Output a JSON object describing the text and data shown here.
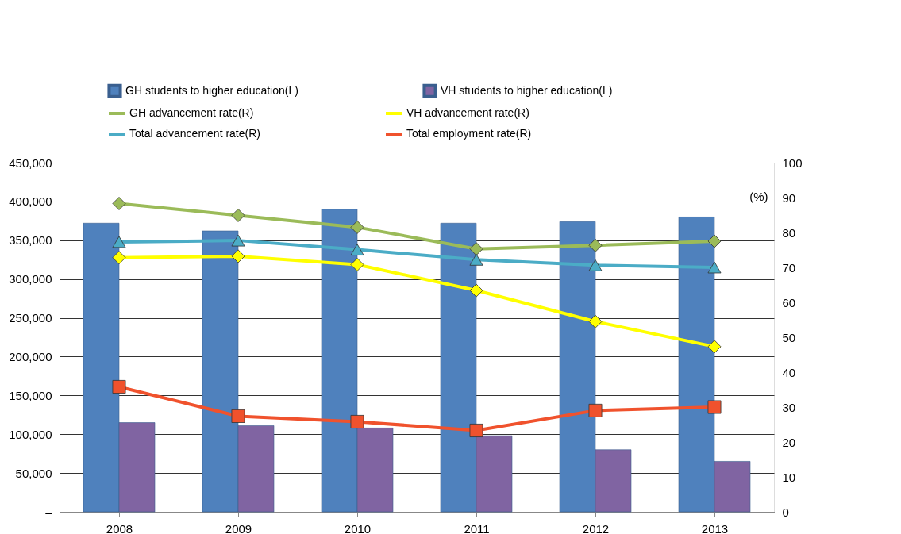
{
  "chart_data": {
    "type": "bar",
    "categories": [
      "2008",
      "2009",
      "2010",
      "2011",
      "2012",
      "2013"
    ],
    "series": [
      {
        "name": "GH students to higher education(L)",
        "color": "#4f81bd",
        "values": [
          372000,
          362000,
          390000,
          372000,
          374000,
          380000
        ]
      },
      {
        "name": "VH students to higher education(L)",
        "color": "#8064a2",
        "values": [
          115000,
          111000,
          108000,
          98000,
          80000,
          65000
        ]
      },
      {
        "name": "GH advancement rate(R)",
        "type": "line",
        "axis": "y2",
        "marker": "diamond",
        "color": "#9bbb59",
        "values": [
          88.3,
          84.9,
          81.5,
          75.3,
          76.3,
          77.5
        ]
      },
      {
        "name": "VH advancement rate(R)",
        "type": "line",
        "axis": "y2",
        "marker": "diamond",
        "color": "#ffff00",
        "values": [
          72.8,
          73.2,
          70.8,
          63.4,
          54.5,
          47.3
        ]
      },
      {
        "name": "Total advancement rate(R)",
        "type": "line",
        "axis": "y2",
        "marker": "triangle",
        "color": "#4bacc6",
        "values": [
          77.3,
          77.7,
          75.1,
          72.2,
          70.6,
          70.0
        ]
      },
      {
        "name": "Total employment rate(R)",
        "type": "line",
        "axis": "y2",
        "marker": "square",
        "color": "#f0522d",
        "values": [
          35.8,
          27.4,
          25.8,
          23.3,
          29.0,
          30.0
        ]
      }
    ],
    "y2label": "(%)",
    "ylim": [
      0,
      450000
    ],
    "yticks": [
      {
        "value": 0,
        "label": "–"
      },
      {
        "value": 50000,
        "label": "50,000"
      },
      {
        "value": 100000,
        "label": "100,000"
      },
      {
        "value": 150000,
        "label": "150,000"
      },
      {
        "value": 200000,
        "label": "200,000"
      },
      {
        "value": 250000,
        "label": "250,000"
      },
      {
        "value": 300000,
        "label": "300,000"
      },
      {
        "value": 350000,
        "label": "350,000"
      },
      {
        "value": 400000,
        "label": "400,000"
      },
      {
        "value": 450000,
        "label": "450,000"
      }
    ],
    "y2lim": [
      0,
      100
    ],
    "y2ticks": [
      0,
      10,
      20,
      30,
      40,
      50,
      60,
      70,
      80,
      90,
      100
    ],
    "grid": "y",
    "legend": "top"
  }
}
